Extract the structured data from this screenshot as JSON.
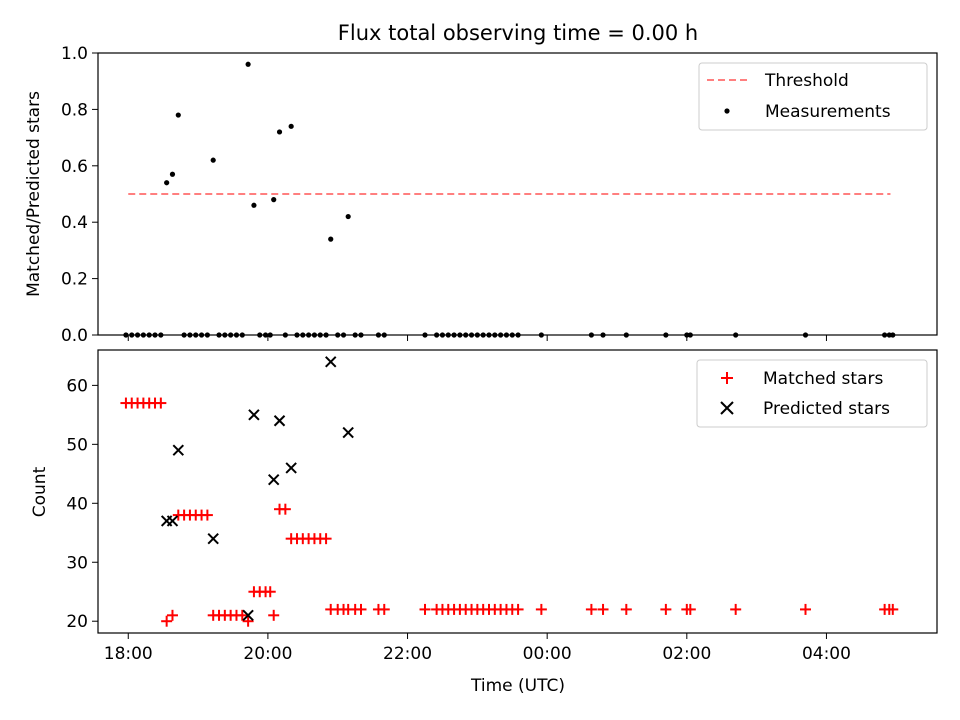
{
  "chart_data": [
    {
      "type": "scatter",
      "title": "Flux total observing time = 0.00 h",
      "xlabel": "",
      "ylabel": "Matched/Predicted stars",
      "ylim": [
        0.0,
        1.0
      ],
      "xlim": [
        "17:34",
        "05:35"
      ],
      "yticks": [
        "0.0",
        "0.2",
        "0.4",
        "0.6",
        "0.8",
        "1.0"
      ],
      "xticks": [
        "18:00",
        "20:00",
        "22:00",
        "00:00",
        "02:00",
        "04:00"
      ],
      "legend_position": "upper-right",
      "threshold": {
        "name": "Threshold",
        "color": "#ff7f7f",
        "style": "dashed",
        "value": 0.5,
        "x_range": [
          "18:00",
          "04:55"
        ]
      },
      "series": [
        {
          "name": "Measurements",
          "color": "#000000",
          "marker": "dot",
          "points": [
            [
              "17:58",
              0
            ],
            [
              "18:03",
              0
            ],
            [
              "18:08",
              0
            ],
            [
              "18:13",
              0
            ],
            [
              "18:18",
              0
            ],
            [
              "18:23",
              0
            ],
            [
              "18:28",
              0
            ],
            [
              "18:33",
              0.54
            ],
            [
              "18:38",
              0.57
            ],
            [
              "18:43",
              0.78
            ],
            [
              "18:48",
              0
            ],
            [
              "18:53",
              0
            ],
            [
              "18:58",
              0
            ],
            [
              "19:03",
              0
            ],
            [
              "19:08",
              0
            ],
            [
              "19:13",
              0.62
            ],
            [
              "19:18",
              0
            ],
            [
              "19:23",
              0
            ],
            [
              "19:28",
              0
            ],
            [
              "19:33",
              0
            ],
            [
              "19:38",
              0
            ],
            [
              "19:43",
              0.96
            ],
            [
              "19:48",
              0.46
            ],
            [
              "19:53",
              0
            ],
            [
              "19:58",
              0
            ],
            [
              "20:02",
              0
            ],
            [
              "20:05",
              0.48
            ],
            [
              "20:10",
              0.72
            ],
            [
              "20:15",
              0
            ],
            [
              "20:20",
              0.74
            ],
            [
              "20:25",
              0
            ],
            [
              "20:30",
              0
            ],
            [
              "20:35",
              0
            ],
            [
              "20:40",
              0
            ],
            [
              "20:45",
              0
            ],
            [
              "20:50",
              0
            ],
            [
              "20:54",
              0.34
            ],
            [
              "21:00",
              0
            ],
            [
              "21:05",
              0
            ],
            [
              "21:09",
              0.42
            ],
            [
              "21:15",
              0
            ],
            [
              "21:20",
              0
            ],
            [
              "21:35",
              0
            ],
            [
              "21:40",
              0
            ],
            [
              "22:15",
              0
            ],
            [
              "22:25",
              0
            ],
            [
              "22:30",
              0
            ],
            [
              "22:35",
              0
            ],
            [
              "22:40",
              0
            ],
            [
              "22:45",
              0
            ],
            [
              "22:50",
              0
            ],
            [
              "22:55",
              0
            ],
            [
              "23:00",
              0
            ],
            [
              "23:05",
              0
            ],
            [
              "23:10",
              0
            ],
            [
              "23:15",
              0
            ],
            [
              "23:20",
              0
            ],
            [
              "23:25",
              0
            ],
            [
              "23:30",
              0
            ],
            [
              "23:35",
              0
            ],
            [
              "23:55",
              0
            ],
            [
              "00:38",
              0
            ],
            [
              "00:48",
              0
            ],
            [
              "01:08",
              0
            ],
            [
              "01:42",
              0
            ],
            [
              "02:00",
              0
            ],
            [
              "02:03",
              0
            ],
            [
              "02:42",
              0
            ],
            [
              "03:42",
              0
            ],
            [
              "04:50",
              0
            ],
            [
              "04:54",
              0
            ],
            [
              "04:57",
              0
            ]
          ]
        }
      ]
    },
    {
      "type": "scatter",
      "title": "",
      "xlabel": "Time (UTC)",
      "ylabel": "Count",
      "ylim": [
        18,
        66
      ],
      "xlim": [
        "17:34",
        "05:35"
      ],
      "yticks": [
        "20",
        "30",
        "40",
        "50",
        "60"
      ],
      "xticks": [
        "18:00",
        "20:00",
        "22:00",
        "00:00",
        "02:00",
        "04:00"
      ],
      "legend_position": "upper-right",
      "series": [
        {
          "name": "Matched stars",
          "color": "#ff0000",
          "marker": "plus",
          "points": [
            [
              "17:58",
              57
            ],
            [
              "18:03",
              57
            ],
            [
              "18:08",
              57
            ],
            [
              "18:13",
              57
            ],
            [
              "18:18",
              57
            ],
            [
              "18:23",
              57
            ],
            [
              "18:28",
              57
            ],
            [
              "18:33",
              20
            ],
            [
              "18:38",
              21
            ],
            [
              "18:43",
              38
            ],
            [
              "18:48",
              38
            ],
            [
              "18:53",
              38
            ],
            [
              "18:58",
              38
            ],
            [
              "19:03",
              38
            ],
            [
              "19:08",
              38
            ],
            [
              "19:13",
              21
            ],
            [
              "19:18",
              21
            ],
            [
              "19:23",
              21
            ],
            [
              "19:28",
              21
            ],
            [
              "19:33",
              21
            ],
            [
              "19:38",
              21
            ],
            [
              "19:43",
              20
            ],
            [
              "19:48",
              25
            ],
            [
              "19:53",
              25
            ],
            [
              "19:58",
              25
            ],
            [
              "20:02",
              25
            ],
            [
              "20:05",
              21
            ],
            [
              "20:10",
              39
            ],
            [
              "20:15",
              39
            ],
            [
              "20:20",
              34
            ],
            [
              "20:25",
              34
            ],
            [
              "20:30",
              34
            ],
            [
              "20:35",
              34
            ],
            [
              "20:40",
              34
            ],
            [
              "20:45",
              34
            ],
            [
              "20:50",
              34
            ],
            [
              "20:54",
              22
            ],
            [
              "21:00",
              22
            ],
            [
              "21:05",
              22
            ],
            [
              "21:09",
              22
            ],
            [
              "21:15",
              22
            ],
            [
              "21:20",
              22
            ],
            [
              "21:35",
              22
            ],
            [
              "21:40",
              22
            ],
            [
              "22:15",
              22
            ],
            [
              "22:25",
              22
            ],
            [
              "22:30",
              22
            ],
            [
              "22:35",
              22
            ],
            [
              "22:40",
              22
            ],
            [
              "22:45",
              22
            ],
            [
              "22:50",
              22
            ],
            [
              "22:55",
              22
            ],
            [
              "23:00",
              22
            ],
            [
              "23:05",
              22
            ],
            [
              "23:10",
              22
            ],
            [
              "23:15",
              22
            ],
            [
              "23:20",
              22
            ],
            [
              "23:25",
              22
            ],
            [
              "23:30",
              22
            ],
            [
              "23:35",
              22
            ],
            [
              "23:55",
              22
            ],
            [
              "00:38",
              22
            ],
            [
              "00:48",
              22
            ],
            [
              "01:08",
              22
            ],
            [
              "01:42",
              22
            ],
            [
              "02:00",
              22
            ],
            [
              "02:03",
              22
            ],
            [
              "02:42",
              22
            ],
            [
              "03:42",
              22
            ],
            [
              "04:50",
              22
            ],
            [
              "04:54",
              22
            ],
            [
              "04:57",
              22
            ]
          ]
        },
        {
          "name": "Predicted stars",
          "color": "#000000",
          "marker": "x",
          "points": [
            [
              "18:33",
              37
            ],
            [
              "18:38",
              37
            ],
            [
              "18:43",
              49
            ],
            [
              "19:13",
              34
            ],
            [
              "19:43",
              21
            ],
            [
              "19:48",
              55
            ],
            [
              "20:05",
              44
            ],
            [
              "20:10",
              54
            ],
            [
              "20:20",
              46
            ],
            [
              "20:54",
              64
            ],
            [
              "21:09",
              52
            ]
          ]
        }
      ]
    }
  ]
}
